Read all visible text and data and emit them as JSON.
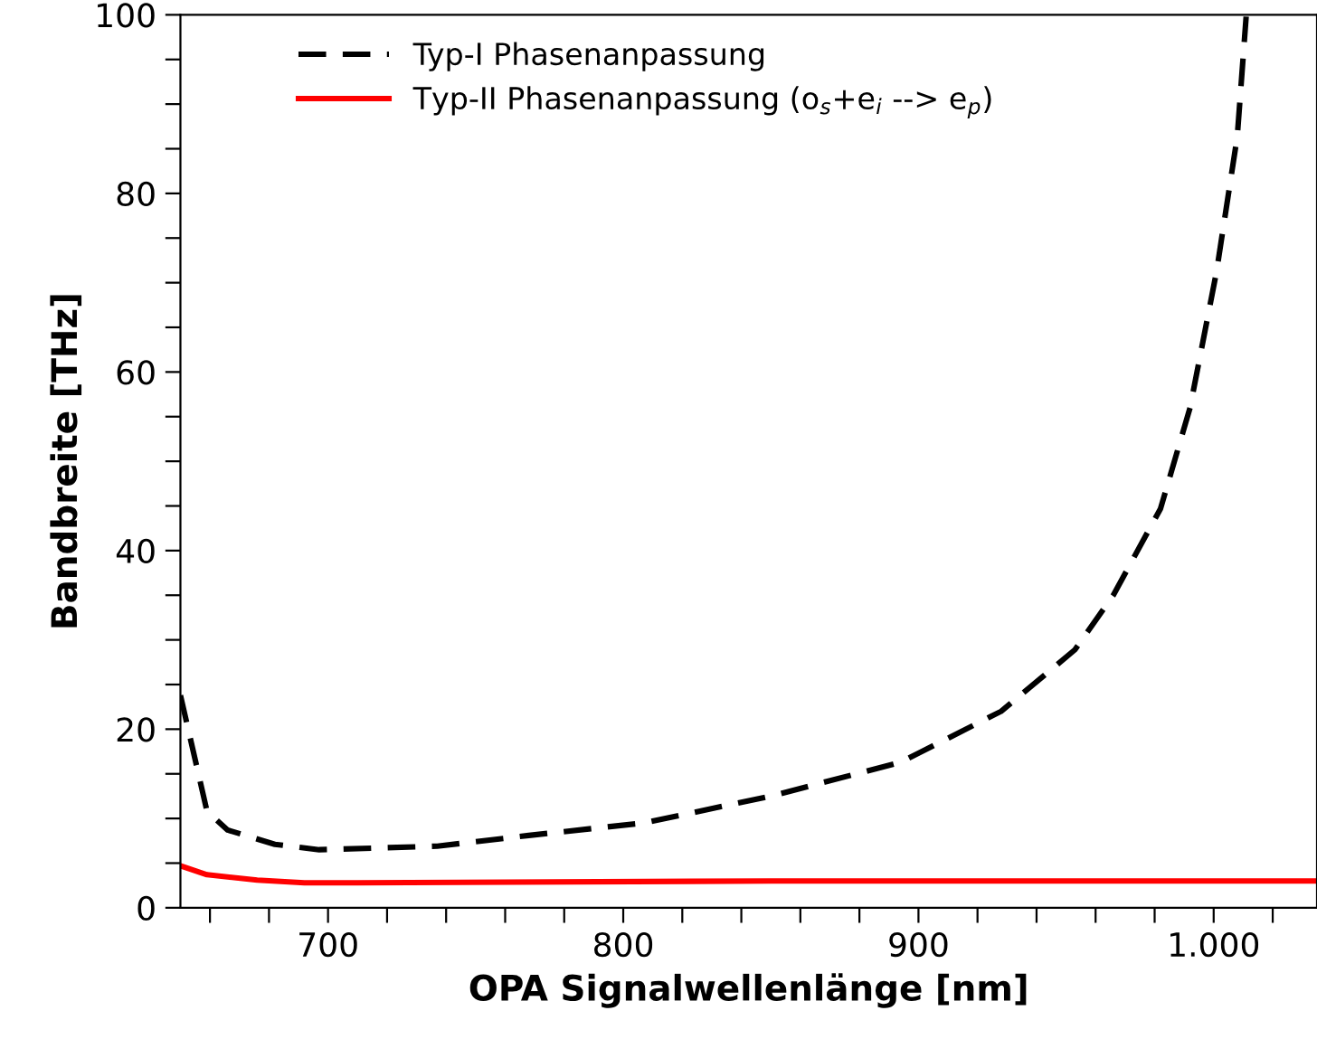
{
  "chart_data": {
    "type": "line",
    "xlabel": "OPA Signalwellenlänge [nm]",
    "ylabel": "Bandbreite [THz]",
    "xlim": [
      650,
      1035
    ],
    "ylim": [
      0,
      100
    ],
    "xticks": [
      {
        "value": 660,
        "label": null
      },
      {
        "value": 680,
        "label": null
      },
      700,
      {
        "value": 720,
        "label": null
      },
      {
        "value": 740,
        "label": null
      },
      {
        "value": 760,
        "label": null
      },
      {
        "value": 780,
        "label": null
      },
      800,
      {
        "value": 820,
        "label": null
      },
      {
        "value": 840,
        "label": null
      },
      {
        "value": 860,
        "label": null
      },
      {
        "value": 880,
        "label": null
      },
      900,
      {
        "value": 920,
        "label": null
      },
      {
        "value": 940,
        "label": null
      },
      {
        "value": 960,
        "label": null
      },
      {
        "value": 980,
        "label": null
      },
      {
        "value": 1000,
        "label": "1.000"
      },
      {
        "value": 1020,
        "label": null
      }
    ],
    "yticks": [
      0,
      {
        "value": 5,
        "label": null
      },
      {
        "value": 10,
        "label": null
      },
      {
        "value": 15,
        "label": null
      },
      20,
      {
        "value": 25,
        "label": null
      },
      {
        "value": 30,
        "label": null
      },
      {
        "value": 35,
        "label": null
      },
      40,
      {
        "value": 45,
        "label": null
      },
      {
        "value": 50,
        "label": null
      },
      {
        "value": 55,
        "label": null
      },
      60,
      {
        "value": 65,
        "label": null
      },
      {
        "value": 70,
        "label": null
      },
      {
        "value": 75,
        "label": null
      },
      80,
      {
        "value": 85,
        "label": null
      },
      {
        "value": 90,
        "label": null
      },
      {
        "value": 95,
        "label": null
      },
      100
    ],
    "grid": false,
    "legend": "top left",
    "series": [
      {
        "name": "Typ-I Phasenanpassung",
        "color": "#000000",
        "line_style": "dashed",
        "x": [
          650,
          659,
          666,
          682,
          697,
          717,
          737,
          768,
          807,
          850,
          894,
          928,
          953,
          966,
          982,
          992,
          1001,
          1008,
          1011
        ],
        "values": [
          23.8,
          10.8,
          8.7,
          7.1,
          6.5,
          6.7,
          6.9,
          8.1,
          9.5,
          12.5,
          16.3,
          22,
          28.9,
          35,
          44.7,
          56,
          71.3,
          86.4,
          99.8
        ]
      },
      {
        "name": "Typ-II Phasenanpassung (o$_{s}$+e$_{i}$ --> e$_{p}$)",
        "color": "#ff0000",
        "line_style": "solid",
        "x": [
          650,
          659,
          676,
          692,
          710,
          850,
          1035
        ],
        "values": [
          4.7,
          3.7,
          3.1,
          2.8,
          2.8,
          3.0,
          3.0
        ]
      }
    ]
  }
}
